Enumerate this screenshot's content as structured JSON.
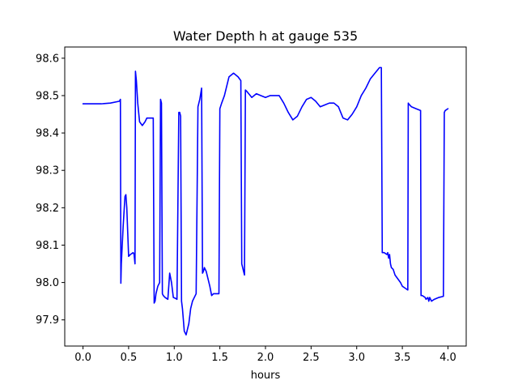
{
  "chart_data": {
    "type": "line",
    "title": "Water Depth h at gauge 535",
    "xlabel": "hours",
    "ylabel": "",
    "xlim": [
      -0.2,
      4.2
    ],
    "ylim": [
      97.83,
      98.63
    ],
    "xticks": [
      0.0,
      0.5,
      1.0,
      1.5,
      2.0,
      2.5,
      3.0,
      3.5,
      4.0
    ],
    "xtick_labels": [
      "0.0",
      "0.5",
      "1.0",
      "1.5",
      "2.0",
      "2.5",
      "3.0",
      "3.5",
      "4.0"
    ],
    "yticks": [
      97.9,
      98.0,
      98.1,
      98.2,
      98.3,
      98.4,
      98.5,
      98.6
    ],
    "ytick_labels": [
      "97.9",
      "98.0",
      "98.1",
      "98.2",
      "98.3",
      "98.4",
      "98.5",
      "98.6"
    ],
    "grid": false,
    "line_color": "#0000ff",
    "series": [
      {
        "x": [
          0.0,
          0.1,
          0.2,
          0.3,
          0.4,
          0.41,
          0.415,
          0.42,
          0.44,
          0.46,
          0.47,
          0.48,
          0.5,
          0.52,
          0.55,
          0.56,
          0.57,
          0.575,
          0.585,
          0.6,
          0.62,
          0.65,
          0.68,
          0.7,
          0.72,
          0.75,
          0.77,
          0.78,
          0.79,
          0.8,
          0.82,
          0.84,
          0.85,
          0.86,
          0.87,
          0.88,
          0.9,
          0.93,
          0.95,
          0.97,
          0.99,
          1.01,
          1.03,
          1.05,
          1.06,
          1.07,
          1.08,
          1.09,
          1.1,
          1.11,
          1.13,
          1.16,
          1.18,
          1.2,
          1.24,
          1.26,
          1.27,
          1.28,
          1.3,
          1.31,
          1.32,
          1.33,
          1.35,
          1.37,
          1.39,
          1.41,
          1.43,
          1.47,
          1.49,
          1.5,
          1.52,
          1.55,
          1.6,
          1.65,
          1.7,
          1.73,
          1.74,
          1.76,
          1.77,
          1.78,
          1.8,
          1.85,
          1.9,
          1.95,
          2.0,
          2.05,
          2.1,
          2.15,
          2.2,
          2.25,
          2.3,
          2.35,
          2.4,
          2.45,
          2.5,
          2.55,
          2.6,
          2.65,
          2.7,
          2.75,
          2.8,
          2.85,
          2.9,
          2.95,
          3.0,
          3.05,
          3.1,
          3.15,
          3.2,
          3.25,
          3.27,
          3.28,
          3.3,
          3.33,
          3.34,
          3.35,
          3.36,
          3.37,
          3.38,
          3.4,
          3.42,
          3.45,
          3.48,
          3.5,
          3.53,
          3.56,
          3.565,
          3.57,
          3.6,
          3.65,
          3.7,
          3.705,
          3.72,
          3.75,
          3.76,
          3.78,
          3.79,
          3.8,
          3.82,
          3.85,
          3.9,
          3.95,
          3.96,
          3.97,
          4.0
        ],
        "y": [
          98.478,
          98.478,
          98.478,
          98.48,
          98.485,
          98.49,
          97.998,
          98.05,
          98.15,
          98.23,
          98.235,
          98.2,
          98.07,
          98.075,
          98.08,
          98.075,
          98.05,
          98.565,
          98.54,
          98.48,
          98.43,
          98.42,
          98.43,
          98.44,
          98.44,
          98.44,
          98.44,
          97.945,
          97.95,
          97.97,
          97.99,
          98.0,
          98.49,
          98.48,
          97.97,
          97.965,
          97.96,
          97.955,
          98.025,
          98.0,
          97.96,
          97.958,
          97.955,
          98.455,
          98.455,
          98.445,
          97.95,
          97.93,
          97.9,
          97.87,
          97.86,
          97.89,
          97.93,
          97.95,
          97.97,
          98.47,
          98.48,
          98.49,
          98.52,
          98.025,
          98.03,
          98.04,
          98.03,
          98.01,
          97.99,
          97.965,
          97.97,
          97.97,
          97.97,
          98.465,
          98.48,
          98.5,
          98.55,
          98.56,
          98.55,
          98.54,
          98.05,
          98.03,
          98.02,
          98.515,
          98.51,
          98.495,
          98.505,
          98.5,
          98.495,
          98.5,
          98.5,
          98.5,
          98.48,
          98.455,
          98.435,
          98.445,
          98.47,
          98.49,
          98.495,
          98.485,
          98.47,
          98.475,
          98.48,
          98.48,
          98.47,
          98.44,
          98.435,
          98.45,
          98.47,
          98.5,
          98.52,
          98.545,
          98.56,
          98.575,
          98.575,
          98.08,
          98.08,
          98.075,
          98.08,
          98.065,
          98.075,
          98.05,
          98.04,
          98.035,
          98.02,
          98.01,
          98.0,
          97.99,
          97.985,
          97.98,
          98.48,
          98.478,
          98.47,
          98.465,
          98.46,
          97.965,
          97.965,
          97.96,
          97.955,
          97.96,
          97.95,
          97.96,
          97.95,
          97.955,
          97.96,
          97.963,
          98.455,
          98.46,
          98.465
        ]
      }
    ]
  }
}
